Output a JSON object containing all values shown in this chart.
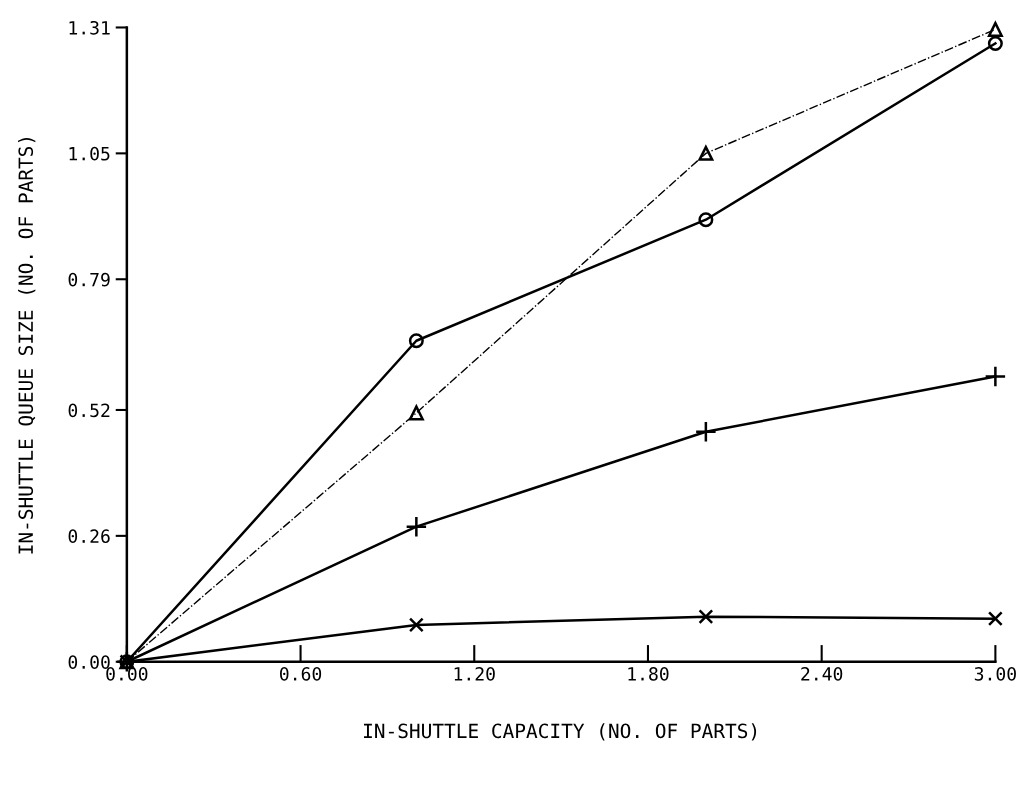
{
  "chart_data": {
    "type": "line",
    "xlabel": "IN-SHUTTLE CAPACITY (NO. OF PARTS)",
    "ylabel": "IN-SHUTTLE QUEUE SIZE (NO. OF PARTS)",
    "x": [
      0,
      1,
      2,
      3
    ],
    "series": [
      {
        "color": "#000000",
        "marker": "triangle",
        "line_style": "dashed",
        "values": [
          0,
          0.514,
          1.05,
          1.306
        ]
      },
      {
        "color": "#000000",
        "marker": "circle",
        "line_style": "solid",
        "values": [
          0,
          0.663,
          0.913,
          1.277
        ]
      },
      {
        "color": "#000000",
        "marker": "plus",
        "line_style": "solid",
        "values": [
          0,
          0.279,
          0.475,
          0.589
        ]
      },
      {
        "color": "#000000",
        "marker": "cross",
        "line_style": "solid",
        "values": [
          0,
          0.076,
          0.093,
          0.089
        ]
      }
    ],
    "xlim": [
      0,
      3
    ],
    "ylim": [
      0,
      1.31
    ],
    "xticks": [
      {
        "value": 0,
        "label": "0.00"
      },
      {
        "value": 0.6,
        "label": "0.60"
      },
      {
        "value": 1.2,
        "label": "1.20"
      },
      {
        "value": 1.8,
        "label": "1.80"
      },
      {
        "value": 2.4,
        "label": "2.40"
      },
      {
        "value": 3,
        "label": "3.00"
      }
    ],
    "yticks": [
      {
        "value": 0,
        "label": "0.00"
      },
      0.26,
      0.52,
      0.79,
      1.05,
      1.31
    ],
    "grid": false,
    "legend": false
  }
}
